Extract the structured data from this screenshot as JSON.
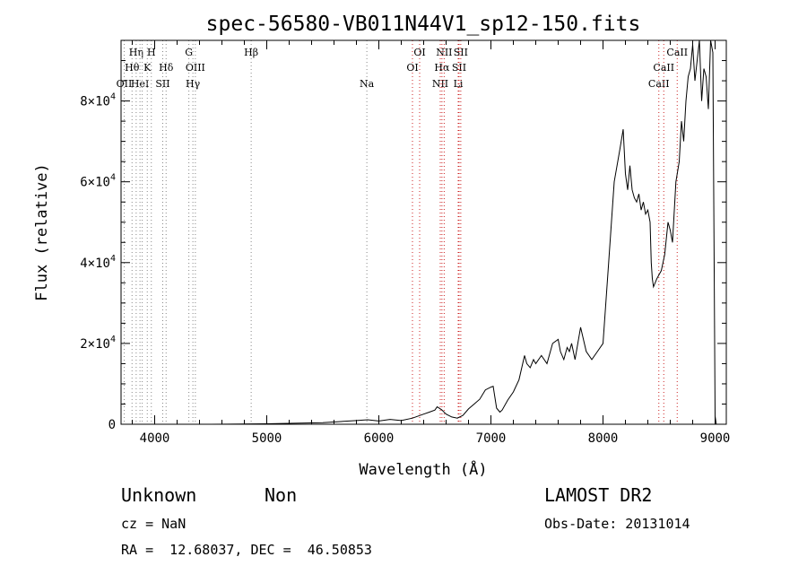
{
  "chart_data": {
    "type": "line",
    "title": "spec-56580-VB011N44V1_sp12-150.fits",
    "xlabel": "Wavelength (Å)",
    "ylabel": "Flux (relative)",
    "xlim": [
      3700,
      9100
    ],
    "ylim": [
      0,
      95000
    ],
    "x_ticks": [
      4000,
      5000,
      6000,
      7000,
      8000,
      9000
    ],
    "y_ticks": [
      {
        "value": 0,
        "mantissa": "0",
        "exp": ""
      },
      {
        "value": 20000,
        "mantissa": "2×10",
        "exp": "4"
      },
      {
        "value": 40000,
        "mantissa": "4×10",
        "exp": "4"
      },
      {
        "value": 60000,
        "mantissa": "6×10",
        "exp": "4"
      },
      {
        "value": 80000,
        "mantissa": "8×10",
        "exp": "4"
      }
    ],
    "grid": false,
    "series": [
      {
        "x": [
          3700,
          4000,
          4500,
          5000,
          5500,
          5800,
          5900,
          6000,
          6100,
          6200,
          6300,
          6400,
          6450,
          6500,
          6520,
          6560,
          6600,
          6650,
          6700,
          6750,
          6800,
          6850,
          6900,
          6950,
          7000,
          7020,
          7050,
          7080,
          7100,
          7150,
          7200,
          7250,
          7300,
          7320,
          7350,
          7380,
          7400,
          7450,
          7500,
          7550,
          7600,
          7620,
          7650,
          7680,
          7700,
          7720,
          7750,
          7800,
          7850,
          7900,
          7950,
          8000,
          8050,
          8100,
          8150,
          8180,
          8200,
          8220,
          8240,
          8260,
          8280,
          8300,
          8320,
          8340,
          8360,
          8380,
          8400,
          8420,
          8430,
          8440,
          8450,
          8480,
          8500,
          8520,
          8550,
          8580,
          8600,
          8620,
          8650,
          8680,
          8700,
          8720,
          8740,
          8760,
          8780,
          8800,
          8820,
          8840,
          8860,
          8880,
          8900,
          8920,
          8940,
          8960,
          8980,
          9000,
          9010
        ],
        "y": [
          0,
          0,
          0,
          100,
          400,
          900,
          1100,
          800,
          1200,
          900,
          1500,
          2500,
          3000,
          3500,
          4300,
          3600,
          2500,
          1800,
          1500,
          2200,
          3800,
          5000,
          6200,
          8500,
          9200,
          9400,
          4000,
          3000,
          3500,
          6000,
          8000,
          11000,
          17000,
          15000,
          14000,
          16000,
          15000,
          17000,
          15000,
          20000,
          21000,
          18000,
          16000,
          19000,
          18000,
          20000,
          16000,
          24000,
          18000,
          16000,
          18000,
          20000,
          40000,
          60000,
          68000,
          73000,
          62000,
          58000,
          64000,
          58000,
          56000,
          55000,
          57000,
          53000,
          55000,
          52000,
          53000,
          50000,
          40000,
          36000,
          34000,
          36000,
          37000,
          38000,
          42000,
          50000,
          48000,
          45000,
          60000,
          65000,
          75000,
          70000,
          80000,
          86000,
          88000,
          94000,
          85000,
          90000,
          95000,
          80000,
          88000,
          86000,
          78000,
          95000,
          92000,
          2000,
          0
        ]
      }
    ],
    "line_marks": [
      {
        "x": 3728,
        "label": "OII",
        "row": 3
      },
      {
        "x": 3798,
        "label": "Hθ",
        "row": 2
      },
      {
        "x": 3835,
        "label": "Hη",
        "row": 1
      },
      {
        "x": 3869,
        "label": "HeI",
        "row": 3
      },
      {
        "x": 3889,
        "label": "",
        "row": 0
      },
      {
        "x": 3934,
        "label": "K",
        "row": 2
      },
      {
        "x": 3970,
        "label": "H",
        "row": 1
      },
      {
        "x": 4072,
        "label": "SII",
        "row": 3
      },
      {
        "x": 4102,
        "label": "Hδ",
        "row": 2
      },
      {
        "x": 4305,
        "label": "G",
        "row": 1
      },
      {
        "x": 4341,
        "label": "Hγ",
        "row": 3
      },
      {
        "x": 4363,
        "label": "OIII",
        "row": 2
      },
      {
        "x": 4861,
        "label": "Hβ",
        "row": 1
      },
      {
        "x": 5893,
        "label": "Na",
        "row": 3
      },
      {
        "x": 6300,
        "label": "OI",
        "row": 2
      },
      {
        "x": 6364,
        "label": "OI",
        "row": 1
      },
      {
        "x": 6548,
        "label": "NII",
        "row": 3
      },
      {
        "x": 6563,
        "label": "Hα",
        "row": 2
      },
      {
        "x": 6583,
        "label": "NII",
        "row": 1
      },
      {
        "x": 6708,
        "label": "Li",
        "row": 3
      },
      {
        "x": 6716,
        "label": "SII",
        "row": 2
      },
      {
        "x": 6731,
        "label": "SII",
        "row": 1
      },
      {
        "x": 8498,
        "label": "CaII",
        "row": 3
      },
      {
        "x": 8542,
        "label": "CaII",
        "row": 2
      },
      {
        "x": 8662,
        "label": "CaII",
        "row": 1
      }
    ]
  },
  "footer": {
    "class_label": "Unknown",
    "subclass_label": "Non",
    "release": "LAMOST DR2",
    "cz": "cz = NaN",
    "obs_date": "Obs-Date: 20131014",
    "coords": "RA =  12.68037, DEC =  46.50853"
  },
  "colors": {
    "axis": "#000000",
    "line_red": "#cc2222",
    "line_gray": "#888888"
  }
}
